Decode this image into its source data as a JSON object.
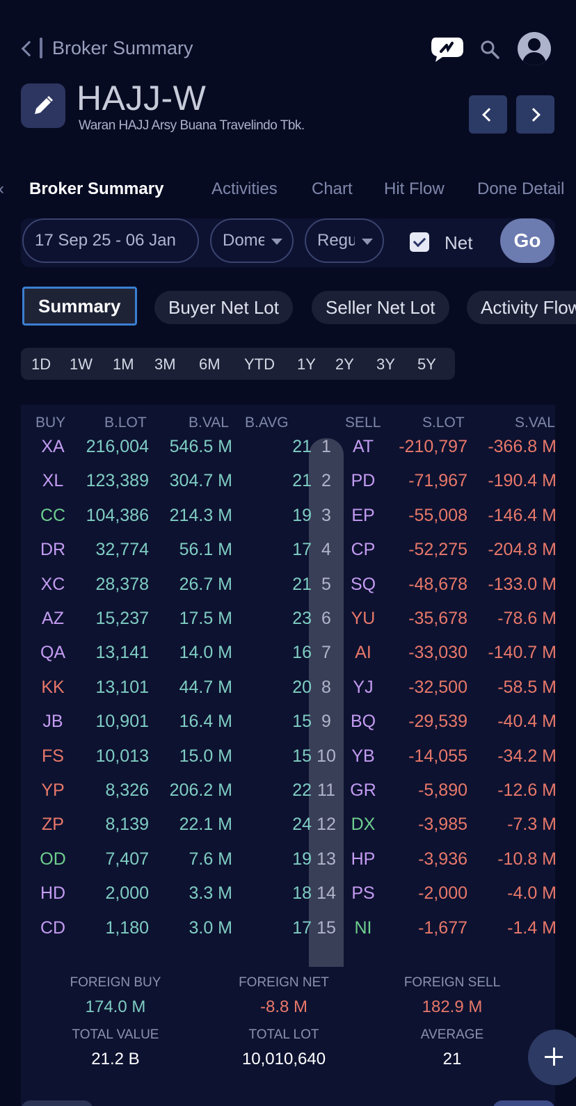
{
  "header": {
    "title": "Broker Summary",
    "ticker": "HAJJ-W",
    "company": "Waran HAJJ Arsy Buana Travelindo Tbk."
  },
  "tabs": [
    "Broker Summary",
    "Activities",
    "Chart",
    "Hit Flow",
    "Done Detail"
  ],
  "filters": {
    "date_range": "17 Sep 25 - 06 Jan",
    "market": "Domestic",
    "board": "Regular",
    "net_label": "Net",
    "net_checked": true,
    "go_label": "Go"
  },
  "segments": [
    "Summary",
    "Buyer Net Lot",
    "Seller Net Lot",
    "Activity Flow"
  ],
  "periods": [
    "1D",
    "1W",
    "1M",
    "3M",
    "6M",
    "YTD",
    "1Y",
    "2Y",
    "3Y",
    "5Y"
  ],
  "table": {
    "headers": {
      "buy": "BUY",
      "blot": "B.LOT",
      "bval": "B.VAL",
      "bavg": "B.AVG",
      "sell": "SELL",
      "slot": "S.LOT",
      "sval": "S.VAL"
    },
    "rows": [
      {
        "rank": "1",
        "buy": "XA",
        "buy_color": "#c49cf2",
        "blot": "216,004",
        "bval": "546.5 M",
        "bavg": "21",
        "sell": "AT",
        "sell_color": "#c49cf2",
        "slot": "-210,797",
        "sval": "-366.8 M"
      },
      {
        "rank": "2",
        "buy": "XL",
        "buy_color": "#c49cf2",
        "blot": "123,389",
        "bval": "304.7 M",
        "bavg": "21",
        "sell": "PD",
        "sell_color": "#c49cf2",
        "slot": "-71,967",
        "sval": "-190.4 M"
      },
      {
        "rank": "3",
        "buy": "CC",
        "buy_color": "#6fcf8f",
        "blot": "104,386",
        "bval": "214.3 M",
        "bavg": "19",
        "sell": "EP",
        "sell_color": "#c49cf2",
        "slot": "-55,008",
        "sval": "-146.4 M"
      },
      {
        "rank": "4",
        "buy": "DR",
        "buy_color": "#c49cf2",
        "blot": "32,774",
        "bval": "56.1 M",
        "bavg": "17",
        "sell": "CP",
        "sell_color": "#c49cf2",
        "slot": "-52,275",
        "sval": "-204.8 M"
      },
      {
        "rank": "5",
        "buy": "XC",
        "buy_color": "#c49cf2",
        "blot": "28,378",
        "bval": "26.7 M",
        "bavg": "21",
        "sell": "SQ",
        "sell_color": "#c49cf2",
        "slot": "-48,678",
        "sval": "-133.0 M"
      },
      {
        "rank": "6",
        "buy": "AZ",
        "buy_color": "#c49cf2",
        "blot": "15,237",
        "bval": "17.5 M",
        "bavg": "23",
        "sell": "YU",
        "sell_color": "#e8786a",
        "slot": "-35,678",
        "sval": "-78.6 M"
      },
      {
        "rank": "7",
        "buy": "QA",
        "buy_color": "#c49cf2",
        "blot": "13,141",
        "bval": "14.0 M",
        "bavg": "16",
        "sell": "AI",
        "sell_color": "#e8786a",
        "slot": "-33,030",
        "sval": "-140.7 M"
      },
      {
        "rank": "8",
        "buy": "KK",
        "buy_color": "#e8786a",
        "blot": "13,101",
        "bval": "44.7 M",
        "bavg": "20",
        "sell": "YJ",
        "sell_color": "#c49cf2",
        "slot": "-32,500",
        "sval": "-58.5 M"
      },
      {
        "rank": "9",
        "buy": "JB",
        "buy_color": "#c49cf2",
        "blot": "10,901",
        "bval": "16.4 M",
        "bavg": "15",
        "sell": "BQ",
        "sell_color": "#c49cf2",
        "slot": "-29,539",
        "sval": "-40.4 M"
      },
      {
        "rank": "10",
        "buy": "FS",
        "buy_color": "#e8786a",
        "blot": "10,013",
        "bval": "15.0 M",
        "bavg": "15",
        "sell": "YB",
        "sell_color": "#c49cf2",
        "slot": "-14,055",
        "sval": "-34.2 M"
      },
      {
        "rank": "11",
        "buy": "YP",
        "buy_color": "#e8786a",
        "blot": "8,326",
        "bval": "206.2 M",
        "bavg": "22",
        "sell": "GR",
        "sell_color": "#c49cf2",
        "slot": "-5,890",
        "sval": "-12.6 M"
      },
      {
        "rank": "12",
        "buy": "ZP",
        "buy_color": "#e8786a",
        "blot": "8,139",
        "bval": "22.1 M",
        "bavg": "24",
        "sell": "DX",
        "sell_color": "#6fcf8f",
        "slot": "-3,985",
        "sval": "-7.3 M"
      },
      {
        "rank": "13",
        "buy": "OD",
        "buy_color": "#6fcf8f",
        "blot": "7,407",
        "bval": "7.6 M",
        "bavg": "19",
        "sell": "HP",
        "sell_color": "#c49cf2",
        "slot": "-3,936",
        "sval": "-10.8 M"
      },
      {
        "rank": "14",
        "buy": "HD",
        "buy_color": "#c49cf2",
        "blot": "2,000",
        "bval": "3.3 M",
        "bavg": "18",
        "sell": "PS",
        "sell_color": "#c49cf2",
        "slot": "-2,000",
        "sval": "-4.0 M"
      },
      {
        "rank": "15",
        "buy": "CD",
        "buy_color": "#c49cf2",
        "blot": "1,180",
        "bval": "3.0 M",
        "bavg": "17",
        "sell": "NI",
        "sell_color": "#6fcf8f",
        "slot": "-1,677",
        "sval": "-1.4 M"
      }
    ]
  },
  "stats": {
    "foreign_buy_label": "FOREIGN BUY",
    "foreign_buy": "174.0 M",
    "foreign_net_label": "FOREIGN NET",
    "foreign_net": "-8.8 M",
    "foreign_sell_label": "FOREIGN SELL",
    "foreign_sell": "182.9 M",
    "total_value_label": "TOTAL VALUE",
    "total_value": "21.2 B",
    "total_lot_label": "TOTAL LOT",
    "total_lot": "10,010,640",
    "average_label": "AVERAGE",
    "average": "21"
  },
  "colors": {
    "accent": "#3b7fd1",
    "buy_value": "#7fcdc3",
    "sell_value": "#e8786a",
    "foreign_broker": "#c49cf2",
    "gov_broker": "#6fcf8f"
  }
}
